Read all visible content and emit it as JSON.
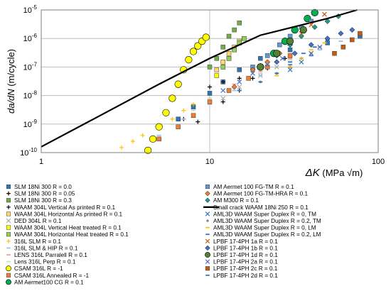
{
  "chart_data": {
    "type": "scatter",
    "x_scale": "log",
    "y_scale": "log",
    "xlim": [
      1,
      100
    ],
    "ylim": [
      1e-10,
      1e-05
    ],
    "grid": true,
    "legend_position": "bottom",
    "x_tick_labels": [
      "1",
      "10",
      "100"
    ],
    "y_tick_labels": [
      {
        "base": "10",
        "exp": "-10"
      },
      {
        "base": "10",
        "exp": "-9"
      },
      {
        "base": "10",
        "exp": "-8"
      },
      {
        "base": "10",
        "exp": "-7"
      },
      {
        "base": "10",
        "exp": "-6"
      },
      {
        "base": "10",
        "exp": "-5"
      }
    ],
    "xlabel": {
      "symbol": "ΔK",
      "unit": "(MPa √m)"
    },
    "ylabel": {
      "symbol": "da/dN",
      "unit": "(m/cycle)"
    },
    "series": [
      {
        "name": "SLM 18Ni 300 R = 0.0",
        "marker": "square",
        "color": "#2e75b6",
        "x": [
          6.5,
          8,
          10,
          12,
          15,
          20,
          30,
          50,
          78
        ],
        "y": [
          1.5e-09,
          4e-09,
          1.2e-08,
          3e-08,
          8e-08,
          2e-07,
          4e-07,
          7e-07,
          1.2e-06
        ]
      },
      {
        "name": "SLM 18Ni 300 R = 0.05",
        "marker": "plus",
        "color": "#000000",
        "x": [
          7,
          8.5,
          10,
          12,
          15
        ],
        "y": [
          1.5e-09,
          1.2e-09,
          2e-08,
          3e-08,
          4e-08
        ]
      },
      {
        "name": "SLM 18Ni 300 R = 0.3",
        "marker": "square",
        "color": "#70ad47",
        "x": [
          10,
          11,
          12,
          13,
          14,
          15
        ],
        "y": [
          1e-07,
          2e-07,
          5e-07,
          1.2e-06,
          2e-06,
          3.5e-06
        ]
      },
      {
        "name": "WAAM 304L Vertical As printed R = 0.1",
        "marker": "plus",
        "color": "#000000",
        "x": [
          12,
          15,
          18,
          22,
          28
        ],
        "y": [
          6e-09,
          1.5e-08,
          4e-08,
          9e-08,
          2e-07
        ]
      },
      {
        "name": "WAAM 304L Horizontal As printed R = 0.1",
        "marker": "square",
        "color": "#ffd966",
        "x": [
          11,
          12,
          13,
          14,
          15,
          16
        ],
        "y": [
          8e-08,
          1.5e-07,
          3e-07,
          5e-07,
          8e-07,
          1e-06
        ]
      },
      {
        "name": "DED 304L R = 0.1",
        "marker": "x",
        "color": "#a9a9a9",
        "x": [
          12,
          15,
          20,
          25,
          30
        ],
        "y": [
          8e-09,
          2e-08,
          5e-08,
          1e-07,
          2e-07
        ]
      },
      {
        "name": "WAAM 304L Vertical Heat treated R = 0.1",
        "marker": "square",
        "color": "#ffff00",
        "x": [
          11,
          12,
          13,
          14,
          15
        ],
        "y": [
          5e-08,
          1e-07,
          2e-07,
          4e-07,
          7e-07
        ]
      },
      {
        "name": "WAAM 304L Horizontal Heat treated R = 0.1",
        "marker": "square",
        "color": "#92d050",
        "x": [
          12,
          13,
          14,
          15,
          16
        ],
        "y": [
          1e-07,
          2e-07,
          4e-07,
          7e-07,
          1e-06
        ]
      },
      {
        "name": "316L SLM R = 0.1",
        "marker": "plus",
        "color": "#ffc000",
        "x": [
          3,
          3.5,
          4,
          5,
          6,
          7,
          8
        ],
        "y": [
          1.5e-10,
          2.5e-10,
          4e-10,
          8e-10,
          1.5e-09,
          3e-09,
          5e-09
        ]
      },
      {
        "name": "316L SLM & HIP R = 0.1",
        "marker": "dash",
        "color": "#9dc3e6",
        "x": [
          5,
          7,
          10,
          14,
          20,
          30,
          45,
          60
        ],
        "y": [
          4e-10,
          1.5e-09,
          5e-09,
          1.5e-08,
          5e-08,
          1.5e-07,
          4e-07,
          8e-07
        ]
      },
      {
        "name": "LENS 316L Parralell R = 0.1",
        "marker": "dash",
        "color": "#ff9999",
        "x": [
          6,
          8,
          10,
          14,
          20,
          30,
          45
        ],
        "y": [
          1e-09,
          3e-09,
          8e-09,
          2.5e-08,
          7e-08,
          2e-07,
          5e-07
        ]
      },
      {
        "name": "Lens 316L Perp R = 0.1",
        "marker": "dash",
        "color": "#c6e0b4",
        "x": [
          6,
          8,
          10,
          14,
          20,
          30
        ],
        "y": [
          1e-09,
          3e-09,
          8e-09,
          2e-08,
          6e-08,
          1.8e-07
        ]
      },
      {
        "name": "CSAM 316L R = -1",
        "marker": "circle",
        "color": "#ffff00",
        "x": [
          4.3,
          4.6,
          5,
          5.5,
          6,
          6.5,
          7,
          7.5,
          8,
          8.5,
          9,
          9.5
        ],
        "y": [
          1.2e-10,
          3e-10,
          8e-10,
          2.5e-09,
          8e-09,
          2.5e-08,
          8e-08,
          1.8e-07,
          3.5e-07,
          5.5e-07,
          8e-07,
          1.1e-06
        ]
      },
      {
        "name": "CSAM 316L Annealed R = -1",
        "marker": "square",
        "color": "#ed7d31",
        "x": [
          5,
          6.5,
          8,
          10,
          13,
          17,
          22,
          30
        ],
        "y": [
          3e-10,
          8e-10,
          2e-09,
          6e-09,
          1.5e-08,
          4e-08,
          1e-07,
          2.5e-07
        ]
      },
      {
        "name": "AM Aermet100 CG R = 0.1",
        "marker": "circle",
        "color": "#00b050",
        "x": [
          20,
          24,
          28,
          32,
          38,
          42
        ],
        "y": [
          1e-07,
          3e-07,
          8e-07,
          2e-06,
          5e-06,
          8e-06
        ]
      },
      {
        "name": "AM Aermet 100 FG-TM R = 0.1",
        "marker": "square",
        "color": "#5b9bd5",
        "x": [
          18,
          22,
          26,
          30,
          35,
          40
        ],
        "y": [
          1e-07,
          2.5e-07,
          6e-07,
          1.2e-06,
          2.5e-06,
          4e-06
        ]
      },
      {
        "name": "AM Aermet 100 FG-TM-HRA R = 0.1",
        "marker": "diamond",
        "color": "#ed7d31",
        "x": [
          14,
          18,
          22,
          26,
          30
        ],
        "y": [
          2e-08,
          8e-08,
          1.5e-07,
          3e-07,
          6e-07
        ]
      },
      {
        "name": "AM M300 R = 0.1",
        "marker": "diamond",
        "color": "#1f9e89",
        "x": [
          20,
          25,
          30,
          35,
          42,
          50,
          58
        ],
        "y": [
          1e-07,
          2.5e-07,
          6e-07,
          1.2e-06,
          2.5e-06,
          4e-06,
          6e-06
        ]
      },
      {
        "name": "Small crack WAAM 18Ni 250 R = 0.1",
        "marker": "line",
        "color": "#000000",
        "x": [
          1,
          2,
          5,
          10,
          20,
          50,
          75
        ],
        "y": [
          1.6e-10,
          1.4e-09,
          2.5e-08,
          2e-07,
          1.3e-06,
          5e-06,
          1e-05
        ]
      },
      {
        "name": "AML3D WAAM Super Duplex R = 0, TM",
        "marker": "x",
        "color": "#2e75b6",
        "x": [
          30,
          35,
          40,
          45,
          50
        ],
        "y": [
          8e-08,
          1.5e-07,
          3e-07,
          5e-07,
          8e-07
        ]
      },
      {
        "name": "AML3D WAAM Super Duplex R = 0.2, TM",
        "marker": "dot",
        "color": "#7f7f7f",
        "x": [
          20,
          25,
          30,
          35,
          40
        ],
        "y": [
          3e-08,
          6e-08,
          1e-07,
          2e-07,
          3e-07
        ]
      },
      {
        "name": "AML3D WAAM Super Duplex R = 0, LM",
        "marker": "dash",
        "color": "#ffc000",
        "x": [
          25,
          30,
          35,
          40,
          48
        ],
        "y": [
          5e-08,
          1e-07,
          2e-07,
          4e-07,
          7e-07
        ]
      },
      {
        "name": "AML3D WAAM Super Duplex R = 0.2, LM",
        "marker": "dash",
        "color": "#4472c4",
        "x": [
          15,
          20,
          25,
          30,
          40
        ],
        "y": [
          1.5e-08,
          3e-08,
          6e-08,
          1.2e-07,
          2.5e-07
        ]
      },
      {
        "name": "LPBF 17-4PH 1a R = 0.1",
        "marker": "x",
        "color": "#c55a11",
        "x": [
          25,
          30,
          35,
          40,
          48
        ],
        "y": [
          3e-07,
          8e-07,
          1.5e-06,
          3e-06,
          7e-06
        ]
      },
      {
        "name": "LPBF 17-4PH 1b R = 0.1",
        "marker": "diamond",
        "color": "#4472c4",
        "x": [
          25,
          32,
          40,
          50,
          60,
          70
        ],
        "y": [
          1.5e-07,
          3e-07,
          6e-07,
          1e-06,
          1.5e-06,
          2e-06
        ]
      },
      {
        "name": "LPBF 17-4PH 1d R = 0.1",
        "marker": "circle",
        "color": "#548235",
        "x": [
          20,
          25,
          30,
          36
        ],
        "y": [
          1e-07,
          3e-07,
          8e-07,
          2e-06
        ]
      },
      {
        "name": "LPBF 17-4PH 2a R = 0.1",
        "marker": "x",
        "color": "#4472c4",
        "x": [
          12,
          15,
          18,
          22,
          27
        ],
        "y": [
          1.5e-08,
          3e-08,
          6e-08,
          1.2e-07,
          2e-07
        ]
      },
      {
        "name": "LPBF 17-4PH 2c R = 0.1",
        "marker": "square",
        "color": "#c55a11",
        "x": [
          55,
          62,
          70,
          78
        ],
        "y": [
          3e-07,
          5e-07,
          9e-07,
          1.5e-06
        ]
      },
      {
        "name": "LPBF 17-4PH 2d R = 0.1",
        "marker": "dash",
        "color": "#2e75b6",
        "x": [
          30,
          36,
          42,
          50
        ],
        "y": [
          1.5e-07,
          3e-07,
          5e-07,
          8e-07
        ]
      }
    ]
  }
}
